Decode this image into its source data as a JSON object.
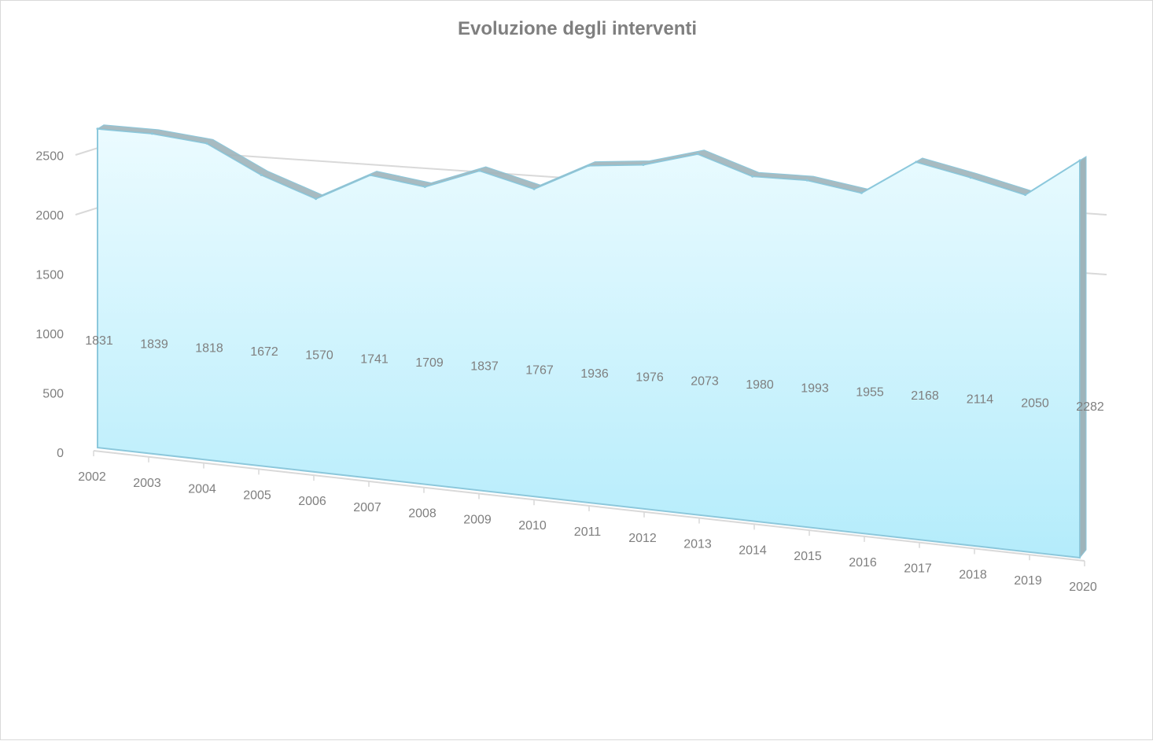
{
  "chart_data": {
    "type": "area",
    "view": "3d",
    "title": "Evoluzione degli interventi",
    "xlabel": "",
    "ylabel": "",
    "categories": [
      "2002",
      "2003",
      "2004",
      "2005",
      "2006",
      "2007",
      "2008",
      "2009",
      "2010",
      "2011",
      "2012",
      "2013",
      "2014",
      "2015",
      "2016",
      "2017",
      "2018",
      "2019",
      "2020"
    ],
    "series": [
      {
        "values": [
          1831,
          1839,
          1818,
          1672,
          1570,
          1741,
          1709,
          1837,
          1767,
          1936,
          1976,
          2073,
          1980,
          1993,
          1955,
          2168,
          2114,
          2050,
          2282
        ]
      }
    ],
    "yticks": [
      "0",
      "500",
      "1000",
      "1500",
      "2000",
      "2500"
    ],
    "ylim": [
      0,
      2500
    ],
    "grid": true,
    "legend": "none",
    "colors": {
      "area_top": "#ebfbff",
      "area_bottom": "#b4ecfb",
      "edge": "#8cc8dc",
      "side": "#9fb4ba",
      "grid": "#d9d9d9",
      "text": "#7f7f7f"
    }
  }
}
